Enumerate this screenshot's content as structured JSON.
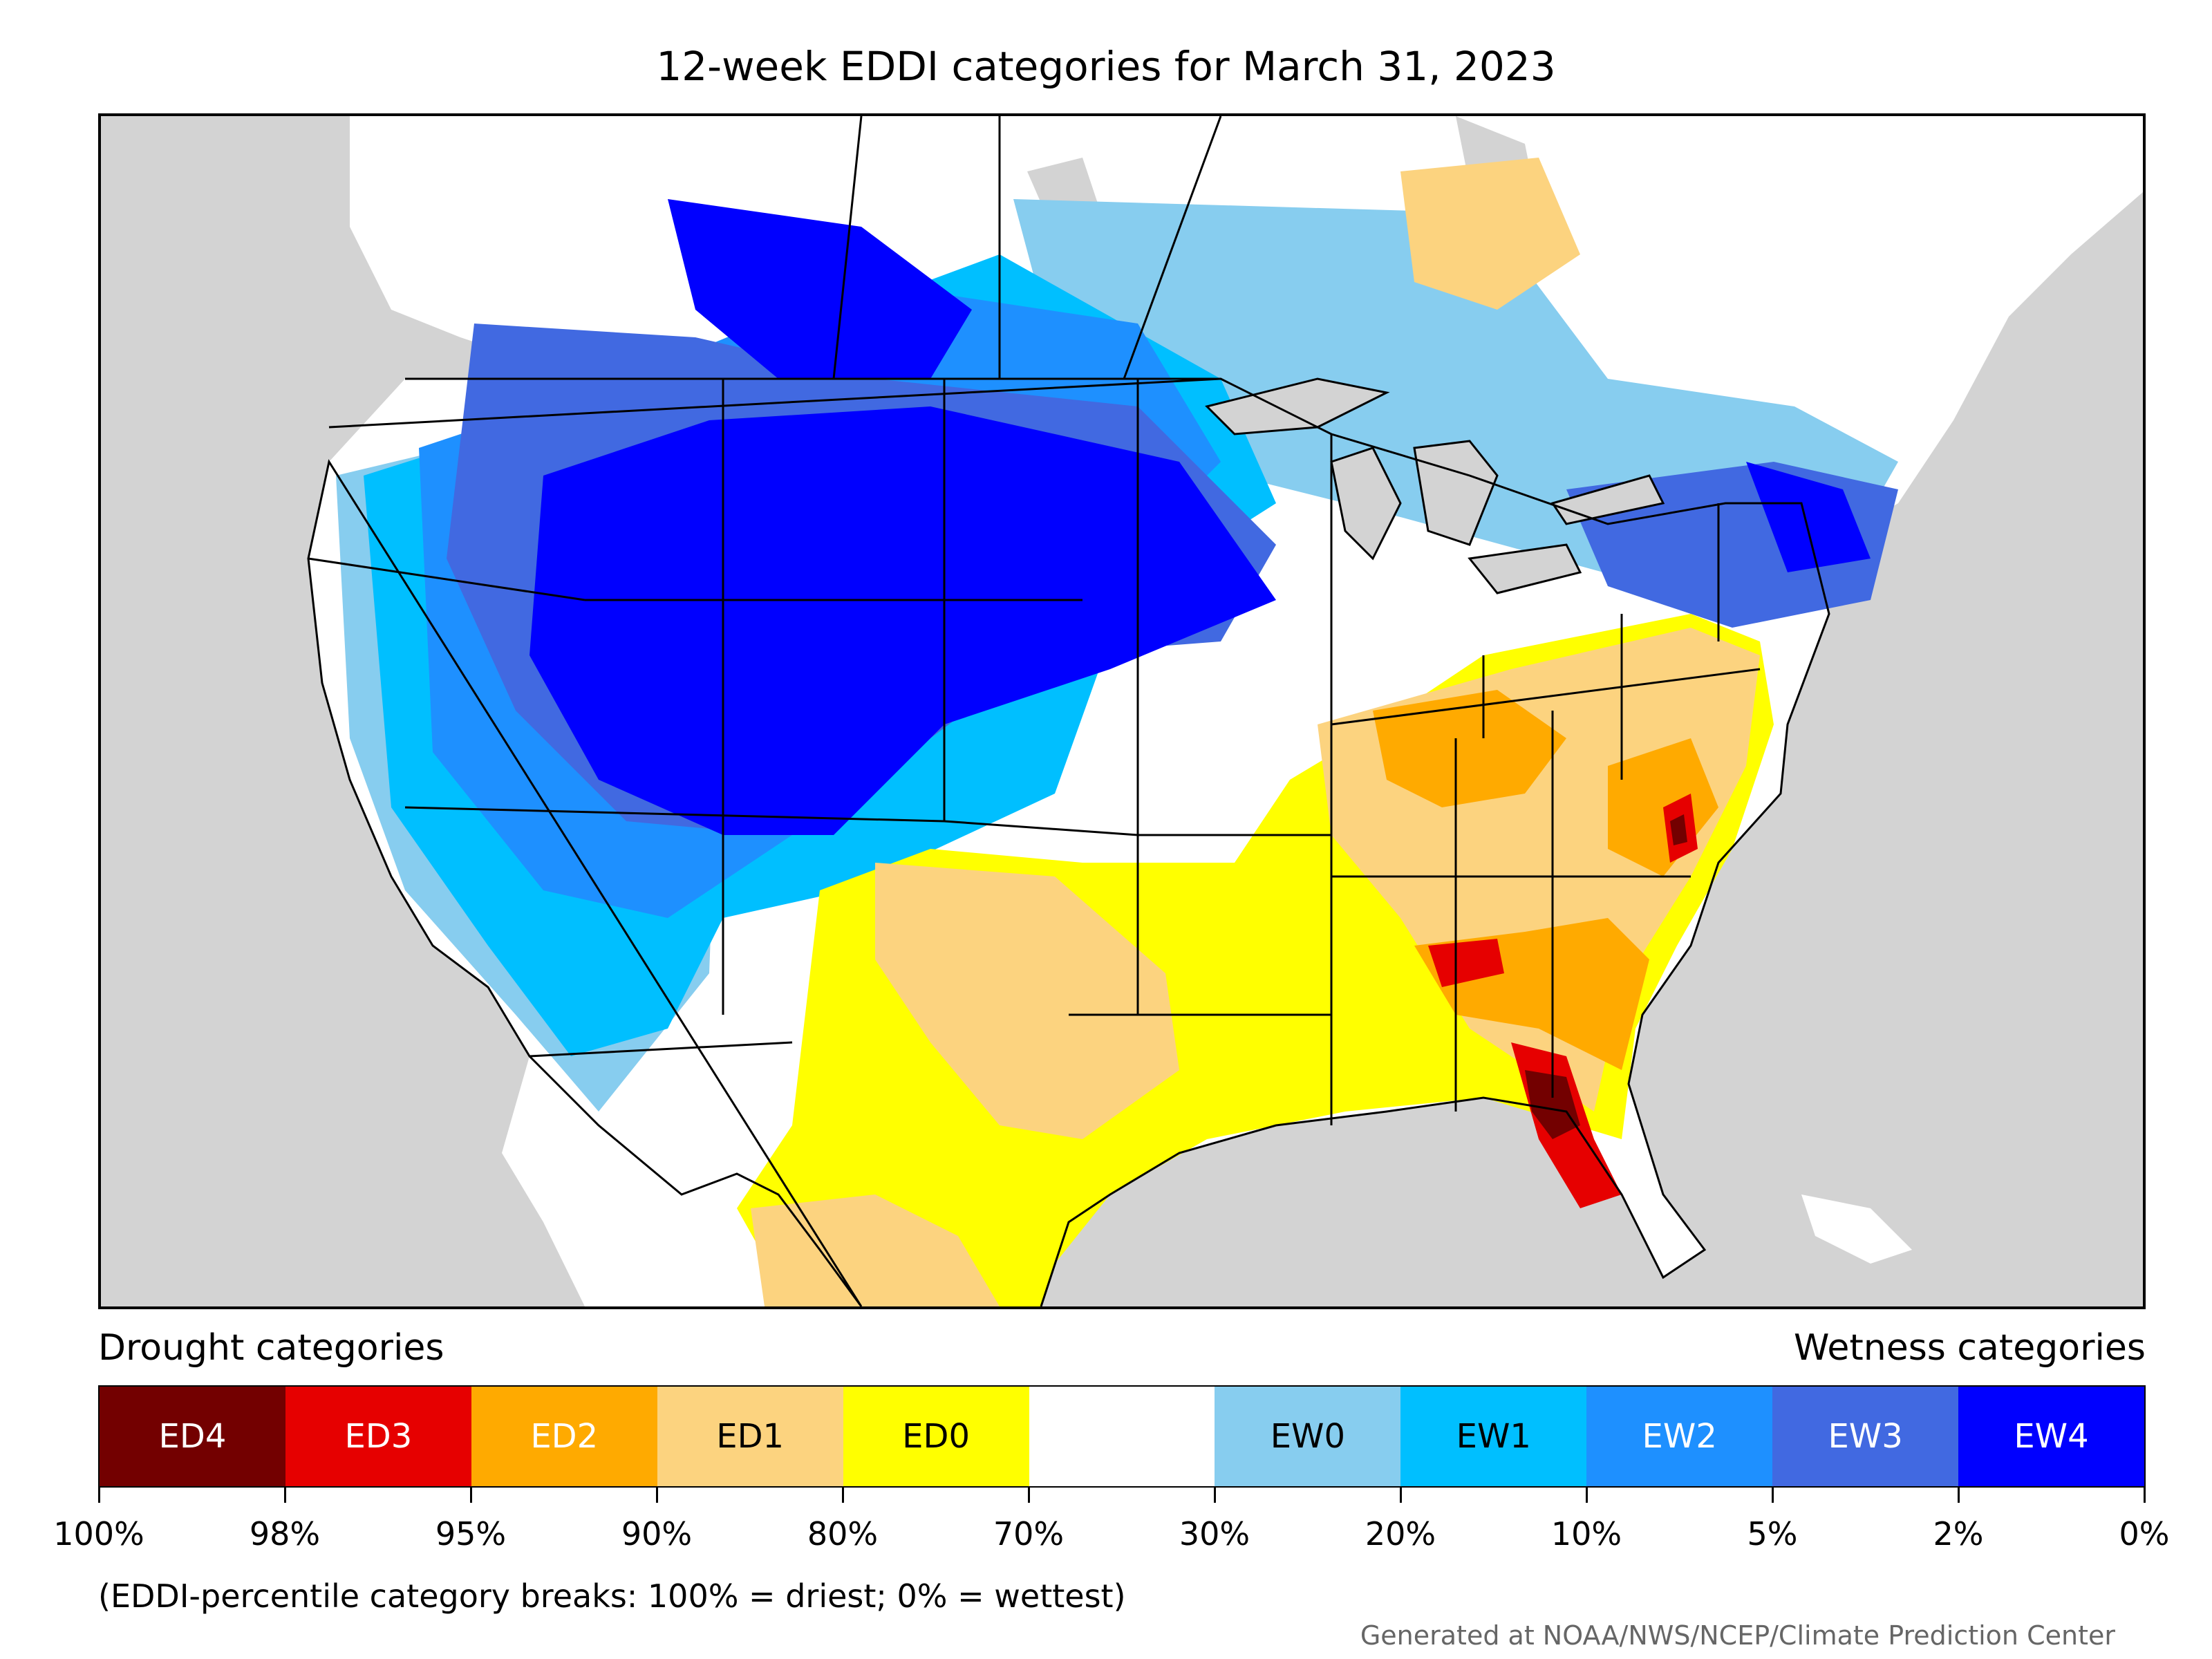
{
  "title": "12-week EDDI categories for March 31, 2023",
  "legend": {
    "drought_heading": "Drought categories",
    "wetness_heading": "Wetness categories",
    "categories": [
      {
        "label": "ED4",
        "color": "#730000",
        "text_color": "#ffffff"
      },
      {
        "label": "ED3",
        "color": "#e60000",
        "text_color": "#ffffff"
      },
      {
        "label": "ED2",
        "color": "#ffaa00",
        "text_color": "#ffffff"
      },
      {
        "label": "ED1",
        "color": "#fcd37f",
        "text_color": "#000000"
      },
      {
        "label": "ED0",
        "color": "#ffff00",
        "text_color": "#000000"
      },
      {
        "label": "",
        "color": "#ffffff",
        "text_color": "#000000"
      },
      {
        "label": "EW0",
        "color": "#87cdef",
        "text_color": "#000000"
      },
      {
        "label": "EW1",
        "color": "#00bfff",
        "text_color": "#000000"
      },
      {
        "label": "EW2",
        "color": "#1e90ff",
        "text_color": "#ffffff"
      },
      {
        "label": "EW3",
        "color": "#4169e1",
        "text_color": "#ffffff"
      },
      {
        "label": "EW4",
        "color": "#0000ff",
        "text_color": "#ffffff"
      }
    ],
    "tick_labels": [
      "100%",
      "98%",
      "95%",
      "90%",
      "80%",
      "70%",
      "30%",
      "20%",
      "10%",
      "5%",
      "2%",
      "0%"
    ]
  },
  "footnote": "(EDDI-percentile category breaks: 100% = driest; 0% = wettest)",
  "credit": "Generated at NOAA/NWS/NCEP/Climate Prediction Center",
  "map": {
    "background_color": "#d3d3d3",
    "land_color": "#ffffff"
  }
}
